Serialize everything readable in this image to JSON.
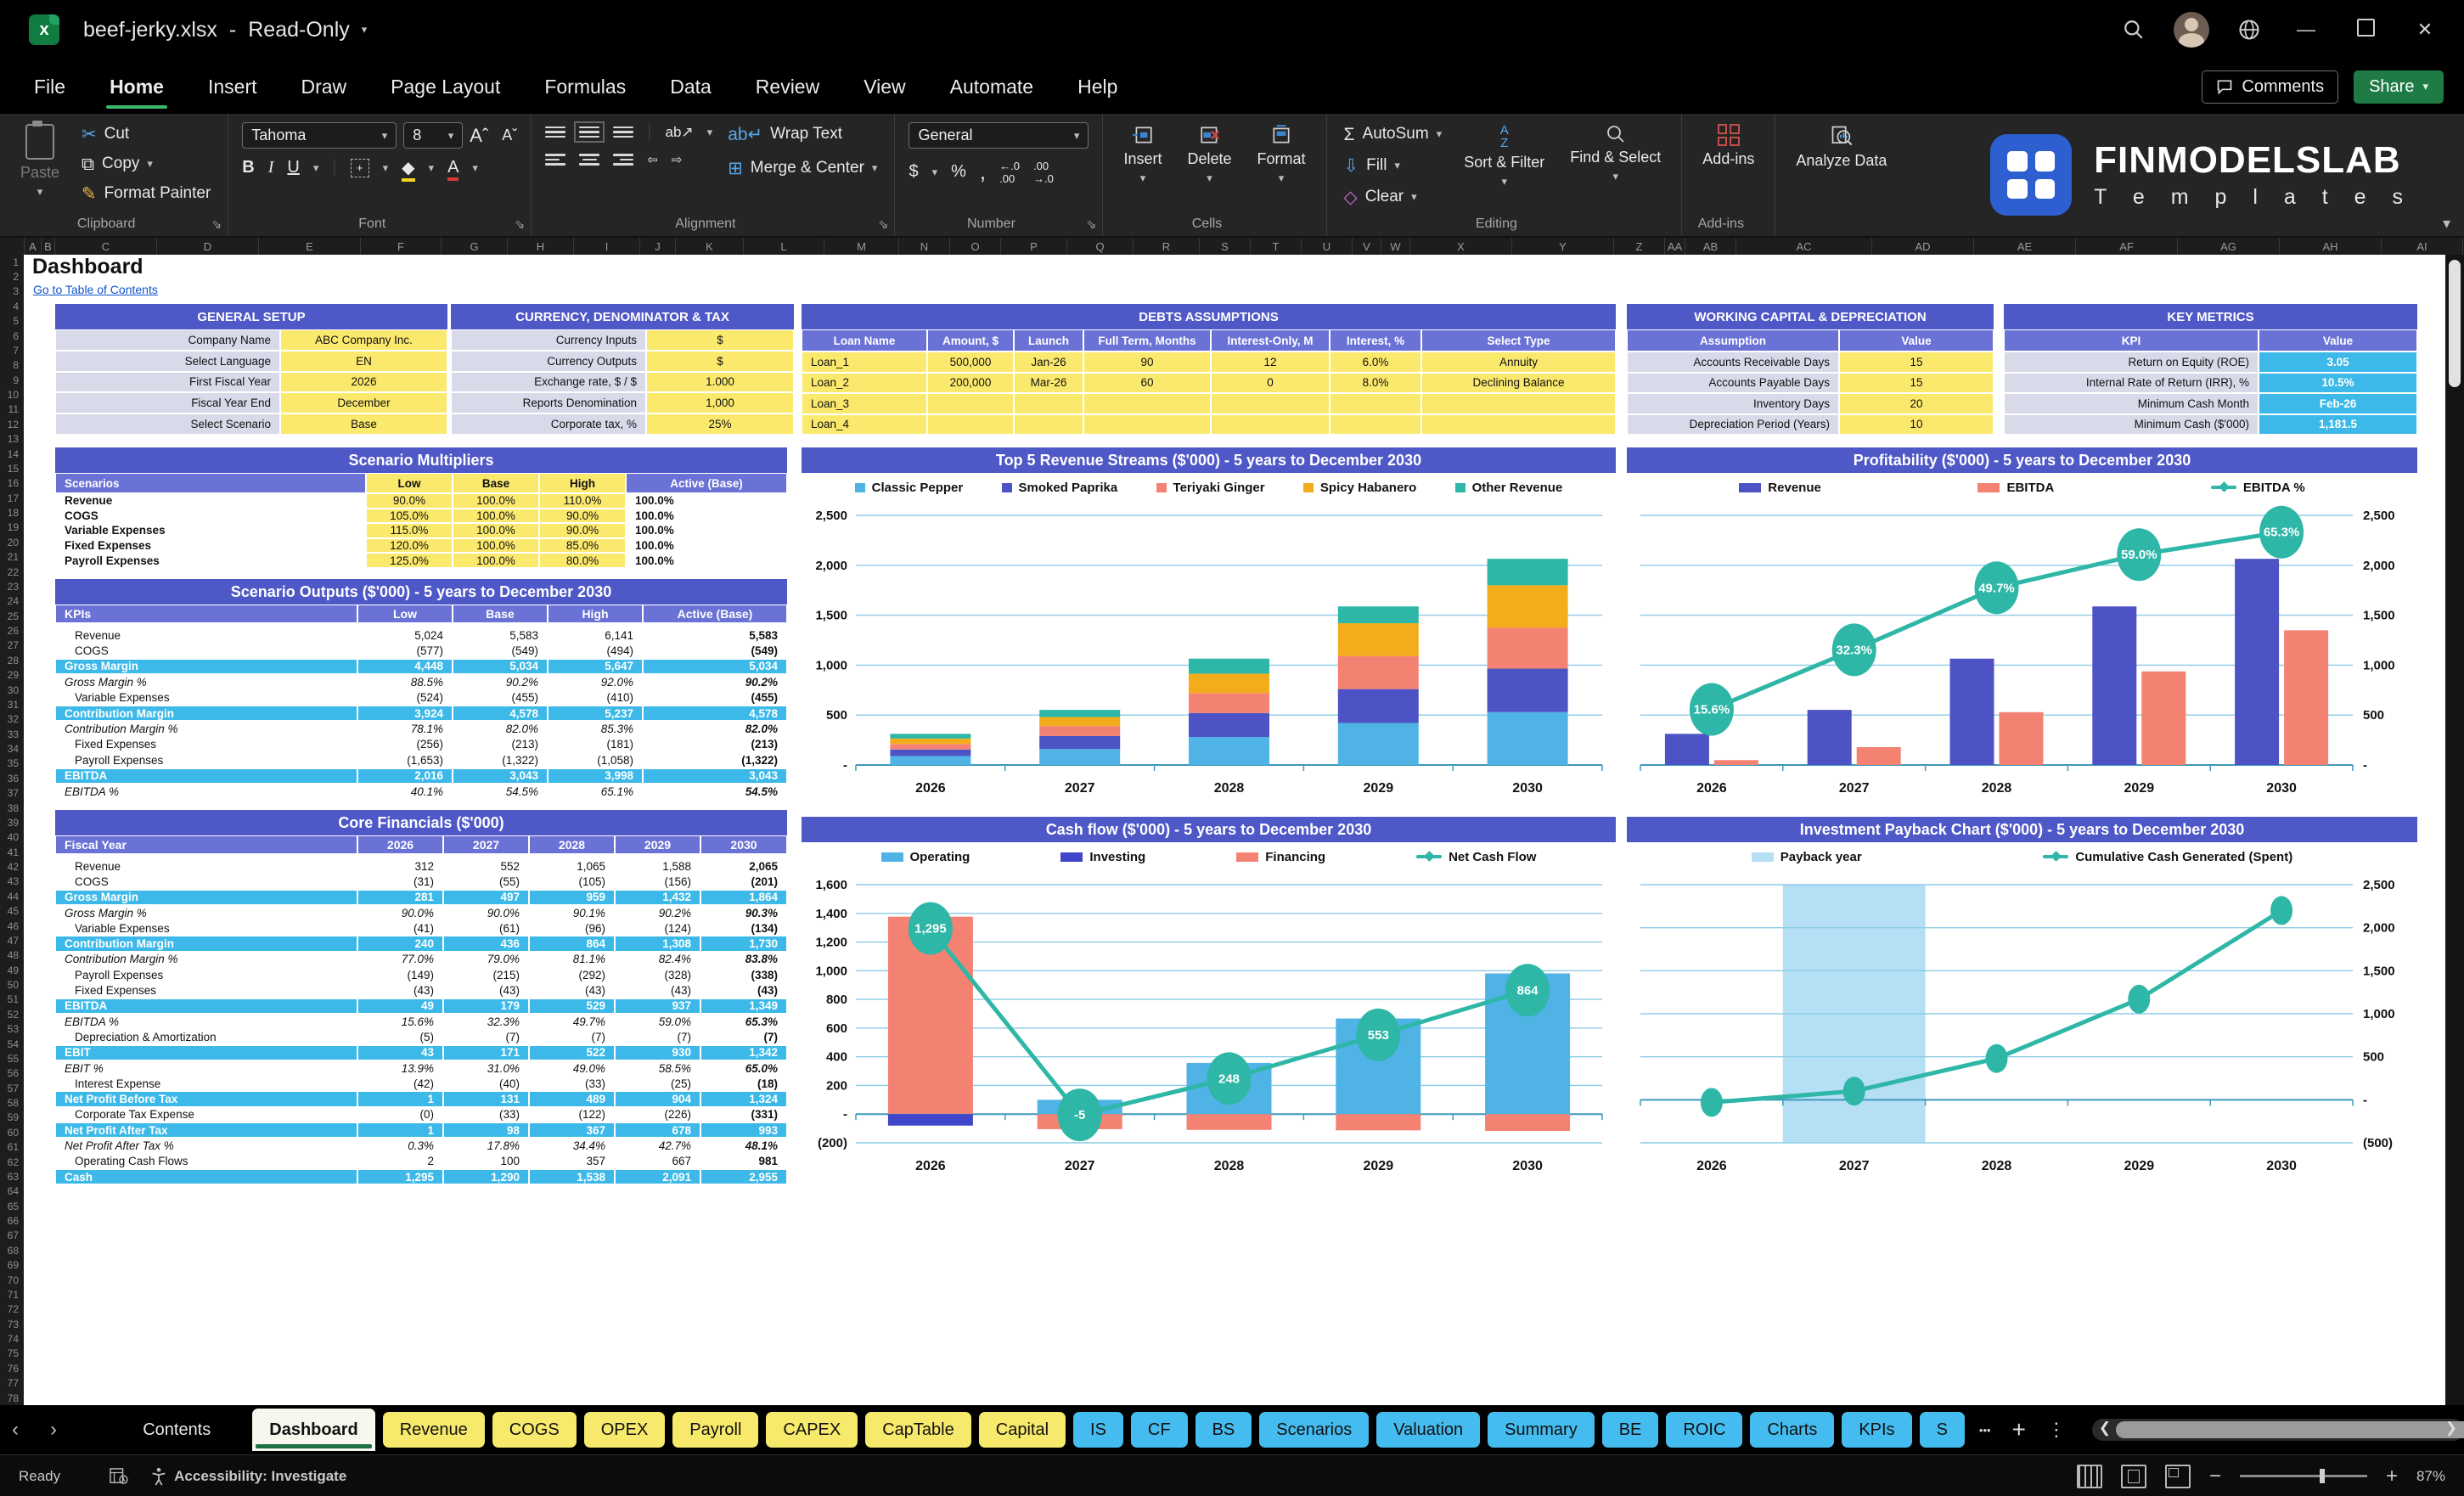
{
  "titlebar": {
    "doc_name": "beef-jerky.xlsx",
    "separator": "-",
    "mode": "Read-Only"
  },
  "menu": {
    "items": [
      "File",
      "Home",
      "Insert",
      "Draw",
      "Page Layout",
      "Formulas",
      "Data",
      "Review",
      "View",
      "Automate",
      "Help"
    ],
    "active": "Home",
    "comments_label": "Comments",
    "share_label": "Share"
  },
  "ribbon": {
    "clipboard": {
      "paste": "Paste",
      "cut": "Cut",
      "copy": "Copy",
      "format_painter": "Format Painter",
      "group": "Clipboard"
    },
    "font": {
      "family": "Tahoma",
      "size": "8",
      "group": "Font"
    },
    "alignment": {
      "wrap": "Wrap Text",
      "merge": "Merge & Center",
      "group": "Alignment"
    },
    "number": {
      "format": "General",
      "group": "Number"
    },
    "cells": {
      "insert": "Insert",
      "delete": "Delete",
      "format": "Format",
      "group": "Cells"
    },
    "editing": {
      "autosum": "AutoSum",
      "fill": "Fill",
      "clear": "Clear",
      "sort": "Sort & Filter",
      "find": "Find & Select",
      "group": "Editing"
    },
    "addins": {
      "label": "Add-ins",
      "group": "Add-ins"
    },
    "analyze": {
      "label": "Analyze Data"
    },
    "brand": {
      "name": "FINMODELSLAB",
      "sub": "T e m p l a t e s"
    }
  },
  "grid": {
    "row_first": 1,
    "row_last": 78
  },
  "sheet": {
    "page_title": "Dashboard",
    "toc_link": "Go to Table of Contents",
    "general_setup": {
      "title": "GENERAL SETUP",
      "rows": [
        [
          "Company Name",
          "ABC Company Inc."
        ],
        [
          "Select Language",
          "EN"
        ],
        [
          "First Fiscal Year",
          "2026"
        ],
        [
          "Fiscal Year End",
          "December"
        ],
        [
          "Select Scenario",
          "Base"
        ]
      ]
    },
    "currency_tax": {
      "title": "CURRENCY, DENOMINATOR & TAX",
      "rows": [
        [
          "Currency Inputs",
          "$"
        ],
        [
          "Currency Outputs",
          "$"
        ],
        [
          "Exchange rate, $ / $",
          "1.000"
        ],
        [
          "Reports Denomination",
          "1,000"
        ],
        [
          "Corporate tax, %",
          "25%"
        ]
      ]
    },
    "debts": {
      "title": "DEBTS ASSUMPTIONS",
      "headers": [
        "Loan Name",
        "Amount, $",
        "Launch",
        "Full Term, Months",
        "Interest-Only, M",
        "Interest, %",
        "Select Type"
      ],
      "rows": [
        [
          "Loan_1",
          "500,000",
          "Jan-26",
          "90",
          "12",
          "6.0%",
          "Annuity"
        ],
        [
          "Loan_2",
          "200,000",
          "Mar-26",
          "60",
          "0",
          "8.0%",
          "Declining Balance"
        ],
        [
          "Loan_3",
          "",
          "",
          "",
          "",
          "",
          ""
        ],
        [
          "Loan_4",
          "",
          "",
          "",
          "",
          "",
          ""
        ]
      ]
    },
    "working_capital": {
      "title": "WORKING CAPITAL & DEPRECIATION",
      "headers": [
        "Assumption",
        "Value"
      ],
      "rows": [
        [
          "Accounts Receivable Days",
          "15"
        ],
        [
          "Accounts Payable Days",
          "15"
        ],
        [
          "Inventory Days",
          "20"
        ],
        [
          "Depreciation Period (Years)",
          "10"
        ]
      ]
    },
    "key_metrics": {
      "title": "KEY METRICS",
      "headers": [
        "KPI",
        "Value"
      ],
      "rows": [
        [
          "Return on Equity (ROE)",
          "3.05"
        ],
        [
          "Internal Rate of Return (IRR), %",
          "10.5%"
        ],
        [
          "Minimum Cash Month",
          "Feb-26"
        ],
        [
          "Minimum Cash ($'000)",
          "1,181.5"
        ]
      ]
    },
    "scenario_multipliers": {
      "title": "Scenario Multipliers",
      "headers": [
        "Scenarios",
        "Low",
        "Base",
        "High",
        "Active (Base)"
      ],
      "rows": [
        [
          "Revenue",
          "90.0%",
          "100.0%",
          "110.0%",
          "100.0%"
        ],
        [
          "COGS",
          "105.0%",
          "100.0%",
          "90.0%",
          "100.0%"
        ],
        [
          "Variable Expenses",
          "115.0%",
          "100.0%",
          "90.0%",
          "100.0%"
        ],
        [
          "Fixed Expenses",
          "120.0%",
          "100.0%",
          "85.0%",
          "100.0%"
        ],
        [
          "Payroll Expenses",
          "125.0%",
          "100.0%",
          "80.0%",
          "100.0%"
        ]
      ]
    },
    "scenario_outputs": {
      "title": "Scenario Outputs ($'000) - 5 years to December 2030",
      "headers": [
        "KPIs",
        "Low",
        "Base",
        "High",
        "Active (Base)"
      ],
      "rows": [
        {
          "label": "Revenue",
          "values": [
            "5,024",
            "5,583",
            "6,141",
            "5,583"
          ],
          "style": "normal"
        },
        {
          "label": "COGS",
          "values": [
            "(577)",
            "(549)",
            "(494)",
            "(549)"
          ],
          "style": "normal"
        },
        {
          "label": "Gross Margin",
          "values": [
            "4,448",
            "5,034",
            "5,647",
            "5,034"
          ],
          "style": "total"
        },
        {
          "label": "Gross Margin %",
          "values": [
            "88.5%",
            "90.2%",
            "92.0%",
            "90.2%"
          ],
          "style": "pct"
        },
        {
          "label": "Variable Expenses",
          "values": [
            "(524)",
            "(455)",
            "(410)",
            "(455)"
          ],
          "style": "normal"
        },
        {
          "label": "Contribution Margin",
          "values": [
            "3,924",
            "4,578",
            "5,237",
            "4,578"
          ],
          "style": "total"
        },
        {
          "label": "Contribution Margin %",
          "values": [
            "78.1%",
            "82.0%",
            "85.3%",
            "82.0%"
          ],
          "style": "pct"
        },
        {
          "label": "Fixed Expenses",
          "values": [
            "(256)",
            "(213)",
            "(181)",
            "(213)"
          ],
          "style": "normal"
        },
        {
          "label": "Payroll Expenses",
          "values": [
            "(1,653)",
            "(1,322)",
            "(1,058)",
            "(1,322)"
          ],
          "style": "normal"
        },
        {
          "label": "EBITDA",
          "values": [
            "2,016",
            "3,043",
            "3,998",
            "3,043"
          ],
          "style": "total"
        },
        {
          "label": "EBITDA %",
          "values": [
            "40.1%",
            "54.5%",
            "65.1%",
            "54.5%"
          ],
          "style": "pct"
        }
      ]
    },
    "core_financials": {
      "title": "Core Financials ($'000)",
      "headers": [
        "Fiscal Year",
        "2026",
        "2027",
        "2028",
        "2029",
        "2030"
      ],
      "rows": [
        {
          "label": "Revenue",
          "values": [
            "312",
            "552",
            "1,065",
            "1,588",
            "2,065"
          ],
          "style": "normal"
        },
        {
          "label": "COGS",
          "values": [
            "(31)",
            "(55)",
            "(105)",
            "(156)",
            "(201)"
          ],
          "style": "normal"
        },
        {
          "label": "Gross Margin",
          "values": [
            "281",
            "497",
            "959",
            "1,432",
            "1,864"
          ],
          "style": "total"
        },
        {
          "label": "Gross Margin %",
          "values": [
            "90.0%",
            "90.0%",
            "90.1%",
            "90.2%",
            "90.3%"
          ],
          "style": "pct"
        },
        {
          "label": "Variable Expenses",
          "values": [
            "(41)",
            "(61)",
            "(96)",
            "(124)",
            "(134)"
          ],
          "style": "normal"
        },
        {
          "label": "Contribution Margin",
          "values": [
            "240",
            "436",
            "864",
            "1,308",
            "1,730"
          ],
          "style": "total"
        },
        {
          "label": "Contribution Margin %",
          "values": [
            "77.0%",
            "79.0%",
            "81.1%",
            "82.4%",
            "83.8%"
          ],
          "style": "pct"
        },
        {
          "label": "Payroll Expenses",
          "values": [
            "(149)",
            "(215)",
            "(292)",
            "(328)",
            "(338)"
          ],
          "style": "normal"
        },
        {
          "label": "Fixed Expenses",
          "values": [
            "(43)",
            "(43)",
            "(43)",
            "(43)",
            "(43)"
          ],
          "style": "normal"
        },
        {
          "label": "EBITDA",
          "values": [
            "49",
            "179",
            "529",
            "937",
            "1,349"
          ],
          "style": "total"
        },
        {
          "label": "EBITDA %",
          "values": [
            "15.6%",
            "32.3%",
            "49.7%",
            "59.0%",
            "65.3%"
          ],
          "style": "pct"
        },
        {
          "label": "Depreciation & Amortization",
          "values": [
            "(5)",
            "(7)",
            "(7)",
            "(7)",
            "(7)"
          ],
          "style": "normal"
        },
        {
          "label": "EBIT",
          "values": [
            "43",
            "171",
            "522",
            "930",
            "1,342"
          ],
          "style": "total"
        },
        {
          "label": "EBIT %",
          "values": [
            "13.9%",
            "31.0%",
            "49.0%",
            "58.5%",
            "65.0%"
          ],
          "style": "pct"
        },
        {
          "label": "Interest Expense",
          "values": [
            "(42)",
            "(40)",
            "(33)",
            "(25)",
            "(18)"
          ],
          "style": "normal"
        },
        {
          "label": "Net Profit Before Tax",
          "values": [
            "1",
            "131",
            "489",
            "904",
            "1,324"
          ],
          "style": "total"
        },
        {
          "label": "Corporate Tax Expense",
          "values": [
            "(0)",
            "(33)",
            "(122)",
            "(226)",
            "(331)"
          ],
          "style": "normal"
        },
        {
          "label": "Net Profit After Tax",
          "values": [
            "1",
            "98",
            "367",
            "678",
            "993"
          ],
          "style": "total"
        },
        {
          "label": "Net Profit After Tax %",
          "values": [
            "0.3%",
            "17.8%",
            "34.4%",
            "42.7%",
            "48.1%"
          ],
          "style": "pct"
        },
        {
          "label": "Operating Cash Flows",
          "values": [
            "2",
            "100",
            "357",
            "667",
            "981"
          ],
          "style": "normal"
        },
        {
          "label": "Cash",
          "values": [
            "1,295",
            "1,290",
            "1,538",
            "2,091",
            "2,955"
          ],
          "style": "total"
        }
      ]
    }
  },
  "chart_data": [
    {
      "type": "bar",
      "stacked": true,
      "title": "Top 5 Revenue Streams ($'000) - 5 years to December 2030",
      "categories": [
        "2026",
        "2027",
        "2028",
        "2029",
        "2030"
      ],
      "series": [
        {
          "name": "Classic Pepper",
          "color": "#4FB3E6",
          "values": [
            90,
            160,
            280,
            420,
            530
          ]
        },
        {
          "name": "Smoked Paprika",
          "color": "#4D53C4",
          "values": [
            65,
            130,
            240,
            340,
            435
          ]
        },
        {
          "name": "Teriyaki Ginger",
          "color": "#F38273",
          "values": [
            55,
            100,
            200,
            330,
            410
          ]
        },
        {
          "name": "Spicy Habanero",
          "color": "#F2AC1C",
          "values": [
            55,
            90,
            195,
            330,
            425
          ]
        },
        {
          "name": "Other Revenue",
          "color": "#2EB6A6",
          "values": [
            47,
            72,
            150,
            168,
            265
          ]
        }
      ],
      "ylim": [
        0,
        2500
      ],
      "ytick_step": 500,
      "axis_side": "left",
      "grid": true,
      "legend_position": "top"
    },
    {
      "type": "combo",
      "title": "Profitability ($'000) - 5 years to December 2030",
      "categories": [
        "2026",
        "2027",
        "2028",
        "2029",
        "2030"
      ],
      "bars": [
        {
          "name": "Revenue",
          "color": "#4D53C4",
          "values": [
            312,
            552,
            1065,
            1588,
            2065
          ]
        },
        {
          "name": "EBITDA",
          "color": "#F38273",
          "values": [
            49,
            179,
            529,
            937,
            1349
          ]
        }
      ],
      "line": {
        "name": "EBITDA %",
        "color": "#2EB6A6",
        "values": [
          15.6,
          32.3,
          49.7,
          59.0,
          65.3
        ],
        "labels": [
          "15.6%",
          "32.3%",
          "49.7%",
          "59.0%",
          "65.3%"
        ],
        "secondary_max": 70
      },
      "ylim": [
        0,
        2500
      ],
      "ytick_step": 500,
      "axis_side": "right",
      "grid": true,
      "legend_position": "top"
    },
    {
      "type": "bar",
      "stacked": true,
      "title": "Cash flow ($'000) - 5 years to December 2030",
      "categories": [
        "2026",
        "2027",
        "2028",
        "2029",
        "2030"
      ],
      "series": [
        {
          "name": "Operating",
          "color": "#4FB3E6",
          "values": [
            2,
            100,
            357,
            667,
            981
          ]
        },
        {
          "name": "Investing",
          "color": "#3F46C9",
          "values": [
            -80,
            0,
            0,
            0,
            0
          ]
        },
        {
          "name": "Financing",
          "color": "#F38273",
          "values": [
            1375,
            -105,
            -110,
            -113,
            -117
          ]
        }
      ],
      "line": {
        "name": "Net Cash Flow",
        "color": "#2EB6A6",
        "values": [
          1295,
          -5,
          248,
          553,
          864
        ],
        "labels": [
          "1,295",
          "-5",
          "248",
          "553",
          "864"
        ]
      },
      "ylim": [
        -200,
        1600
      ],
      "ytick_step": 200,
      "axis_side": "left",
      "grid": true,
      "legend_position": "top"
    },
    {
      "type": "payback",
      "title": "Investment Payback Chart ($'000) - 5 years to December 2030",
      "categories": [
        "2026",
        "2027",
        "2028",
        "2029",
        "2030"
      ],
      "band": {
        "name": "Payback year",
        "color": "#B5DFF5",
        "category": "2027"
      },
      "line": {
        "name": "Cumulative Cash Generated (Spent)",
        "color": "#2EB6A6",
        "values": [
          -30,
          100,
          480,
          1170,
          2200
        ]
      },
      "ylim": [
        -500,
        2500
      ],
      "ytick_step": 500,
      "axis_side": "right",
      "grid": true,
      "legend_position": "top"
    }
  ],
  "tabs": {
    "nav_back": "‹",
    "nav_fwd": "›",
    "items": [
      {
        "label": "Contents",
        "style": "dark"
      },
      {
        "label": "Dashboard",
        "style": "active"
      },
      {
        "label": "Revenue",
        "style": "yellow"
      },
      {
        "label": "COGS",
        "style": "yellow"
      },
      {
        "label": "OPEX",
        "style": "yellow"
      },
      {
        "label": "Payroll",
        "style": "yellow"
      },
      {
        "label": "CAPEX",
        "style": "yellow"
      },
      {
        "label": "CapTable",
        "style": "yellow"
      },
      {
        "label": "Capital",
        "style": "yellow"
      },
      {
        "label": "IS",
        "style": "blue"
      },
      {
        "label": "CF",
        "style": "blue"
      },
      {
        "label": "BS",
        "style": "blue"
      },
      {
        "label": "Scenarios",
        "style": "blue"
      },
      {
        "label": "Valuation",
        "style": "blue"
      },
      {
        "label": "Summary",
        "style": "blue"
      },
      {
        "label": "BE",
        "style": "blue"
      },
      {
        "label": "ROIC",
        "style": "blue"
      },
      {
        "label": "Charts",
        "style": "blue"
      },
      {
        "label": "KPIs",
        "style": "blue"
      },
      {
        "label": "S",
        "style": "blue"
      }
    ],
    "overflow": "•••",
    "add": "+",
    "menu": "⋮"
  },
  "statusbar": {
    "ready": "Ready",
    "accessibility": "Accessibility: Investigate",
    "zoom": "87%"
  }
}
